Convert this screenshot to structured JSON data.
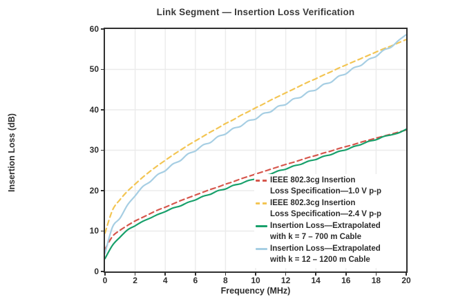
{
  "title": "Link Segment — Insertion Loss Verification",
  "x_axis": {
    "label": "Frequency (MHz)",
    "min": 0,
    "max": 20,
    "ticks": [
      "0",
      "2",
      "4",
      "6",
      "8",
      "10",
      "12",
      "14",
      "16",
      "18",
      "20"
    ]
  },
  "y_axis": {
    "label": "Insertion Loss (dB)",
    "min": 0,
    "max": 60,
    "ticks": [
      "0",
      "10",
      "20",
      "30",
      "40",
      "50",
      "60"
    ]
  },
  "colors": {
    "background": "#ffffff",
    "axis": "#2e2e2e",
    "grid": "#ebebeb",
    "text": "#2e2e2e"
  },
  "chart_data": {
    "type": "line",
    "title": "Link Segment — Insertion Loss Verification",
    "xlabel": "Frequency (MHz)",
    "ylabel": "Insertion Loss (dB)",
    "xlim": [
      0,
      20
    ],
    "ylim": [
      0,
      60
    ],
    "grid": true,
    "legend_position": "inside-bottom-right",
    "x_start": 0,
    "x_step": 0.5,
    "series": [
      {
        "name": "IEEE 802.3cg Insertion Loss Specification—1.0 V p-p",
        "legend": [
          "IEEE 802.3cg Insertion",
          "Loss Specification—1.0 V p-p"
        ],
        "color": "#d6564c",
        "line_style": "dashed",
        "values": [
          5.5,
          8.7,
          10.2,
          11.4,
          12.5,
          13.4,
          14.3,
          15.2,
          15.9,
          16.7,
          17.5,
          18.2,
          18.9,
          19.6,
          20.3,
          20.9,
          21.6,
          22.2,
          22.9,
          23.5,
          24.1,
          24.7,
          25.3,
          25.9,
          26.5,
          27.0,
          27.6,
          28.2,
          28.7,
          29.3,
          29.8,
          30.4,
          30.9,
          31.4,
          32.0,
          32.5,
          33.0,
          33.5,
          34.0,
          34.5,
          35.0
        ]
      },
      {
        "name": "IEEE 802.3cg Insertion Loss Specification—2.4 V p-p",
        "legend": [
          "IEEE 802.3cg Insertion",
          "Loss Specification—2.4 V p-p"
        ],
        "color": "#f3c553",
        "line_style": "dashed",
        "values": [
          9.5,
          15.2,
          17.8,
          19.9,
          21.6,
          23.3,
          24.8,
          26.2,
          27.5,
          28.8,
          30.0,
          31.2,
          32.3,
          33.4,
          34.5,
          35.5,
          36.6,
          37.5,
          38.6,
          39.5,
          40.5,
          41.4,
          42.4,
          43.3,
          44.2,
          45.1,
          46.0,
          46.9,
          47.7,
          48.6,
          49.4,
          50.3,
          51.1,
          51.9,
          52.7,
          53.5,
          54.3,
          55.1,
          55.8,
          56.6,
          57.4
        ]
      },
      {
        "name": "Insertion Loss—Extrapolated with k = 7 – 700 m Cable",
        "legend": [
          "Insertion Loss—Extrapolated",
          "with k = 7 – 700 m Cable"
        ],
        "color": "#18a06b",
        "line_style": "solid",
        "values": [
          3.2,
          6.5,
          8.5,
          10.3,
          11.3,
          12.4,
          13.2,
          14.1,
          14.8,
          15.7,
          16.2,
          17.1,
          17.7,
          18.6,
          19.1,
          20.0,
          20.4,
          21.3,
          21.7,
          22.5,
          22.9,
          23.7,
          24.1,
          24.9,
          25.3,
          26.1,
          26.5,
          27.3,
          27.7,
          28.5,
          28.9,
          29.7,
          30.1,
          30.9,
          31.4,
          32.2,
          32.6,
          33.4,
          33.8,
          34.3,
          35.2
        ]
      },
      {
        "name": "Insertion Loss—Extrapolated with k = 12 – 1200 m Cable",
        "legend": [
          "Insertion Loss—Extrapolated",
          "with k = 12 – 1200 m Cable"
        ],
        "color": "#a6cee3",
        "line_style": "solid",
        "values": [
          4.5,
          11.0,
          13.2,
          16.5,
          18.7,
          21.0,
          22.2,
          24.0,
          24.9,
          26.6,
          27.4,
          29.1,
          29.8,
          31.3,
          31.9,
          33.4,
          34.0,
          35.4,
          35.9,
          37.3,
          37.7,
          39.1,
          39.5,
          40.9,
          41.3,
          42.7,
          43.1,
          44.5,
          44.9,
          46.3,
          46.8,
          48.3,
          48.9,
          50.4,
          51.0,
          52.5,
          53.2,
          54.8,
          55.5,
          57.2,
          58.6
        ]
      }
    ]
  }
}
